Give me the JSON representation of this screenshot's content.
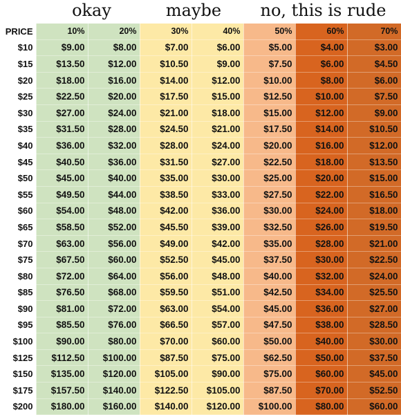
{
  "headers": {
    "okay": "okay",
    "maybe": "maybe",
    "rude": "no, this is rude"
  },
  "table": {
    "columns": [
      "PRICE",
      "10%",
      "20%",
      "30%",
      "40%",
      "50%",
      "60%",
      "70%"
    ],
    "rows": [
      [
        "$10",
        "$9.00",
        "$8.00",
        "$7.00",
        "$6.00",
        "$5.00",
        "$4.00",
        "$3.00"
      ],
      [
        "$15",
        "$13.50",
        "$12.00",
        "$10.50",
        "$9.00",
        "$7.50",
        "$6.00",
        "$4.50"
      ],
      [
        "$20",
        "$18.00",
        "$16.00",
        "$14.00",
        "$12.00",
        "$10.00",
        "$8.00",
        "$6.00"
      ],
      [
        "$25",
        "$22.50",
        "$20.00",
        "$17.50",
        "$15.00",
        "$12.50",
        "$10.00",
        "$7.50"
      ],
      [
        "$30",
        "$27.00",
        "$24.00",
        "$21.00",
        "$18.00",
        "$15.00",
        "$12.00",
        "$9.00"
      ],
      [
        "$35",
        "$31.50",
        "$28.00",
        "$24.50",
        "$21.00",
        "$17.50",
        "$14.00",
        "$10.50"
      ],
      [
        "$40",
        "$36.00",
        "$32.00",
        "$28.00",
        "$24.00",
        "$20.00",
        "$16.00",
        "$12.00"
      ],
      [
        "$45",
        "$40.50",
        "$36.00",
        "$31.50",
        "$27.00",
        "$22.50",
        "$18.00",
        "$13.50"
      ],
      [
        "$50",
        "$45.00",
        "$40.00",
        "$35.00",
        "$30.00",
        "$25.00",
        "$20.00",
        "$15.00"
      ],
      [
        "$55",
        "$49.50",
        "$44.00",
        "$38.50",
        "$33.00",
        "$27.50",
        "$22.00",
        "$16.50"
      ],
      [
        "$60",
        "$54.00",
        "$48.00",
        "$42.00",
        "$36.00",
        "$30.00",
        "$24.00",
        "$18.00"
      ],
      [
        "$65",
        "$58.50",
        "$52.00",
        "$45.50",
        "$39.00",
        "$32.50",
        "$26.00",
        "$19.50"
      ],
      [
        "$70",
        "$63.00",
        "$56.00",
        "$49.00",
        "$42.00",
        "$35.00",
        "$28.00",
        "$21.00"
      ],
      [
        "$75",
        "$67.50",
        "$60.00",
        "$52.50",
        "$45.00",
        "$37.50",
        "$30.00",
        "$22.50"
      ],
      [
        "$80",
        "$72.00",
        "$64.00",
        "$56.00",
        "$48.00",
        "$40.00",
        "$32.00",
        "$24.00"
      ],
      [
        "$85",
        "$76.50",
        "$68.00",
        "$59.50",
        "$51.00",
        "$42.50",
        "$34.00",
        "$25.50"
      ],
      [
        "$90",
        "$81.00",
        "$72.00",
        "$63.00",
        "$54.00",
        "$45.00",
        "$36.00",
        "$27.00"
      ],
      [
        "$95",
        "$85.50",
        "$76.00",
        "$66.50",
        "$57.00",
        "$47.50",
        "$38.00",
        "$28.50"
      ],
      [
        "$100",
        "$90.00",
        "$80.00",
        "$70.00",
        "$60.00",
        "$50.00",
        "$40.00",
        "$30.00"
      ],
      [
        "$125",
        "$112.50",
        "$100.00",
        "$87.50",
        "$75.00",
        "$62.50",
        "$50.00",
        "$37.50"
      ],
      [
        "$150",
        "$135.00",
        "$120.00",
        "$105.00",
        "$90.00",
        "$75.00",
        "$60.00",
        "$45.00"
      ],
      [
        "$175",
        "$157.50",
        "$140.00",
        "$122.50",
        "$105.00",
        "$87.50",
        "$70.00",
        "$52.50"
      ],
      [
        "$200",
        "$180.00",
        "$160.00",
        "$140.00",
        "$120.00",
        "$100.00",
        "$80.00",
        "$60.00"
      ]
    ]
  },
  "colors": {
    "okay": "#cfe3c0",
    "maybe": "#fde9a6",
    "rude_light": "#f7b98a",
    "rude_dark": "#d8641f"
  }
}
